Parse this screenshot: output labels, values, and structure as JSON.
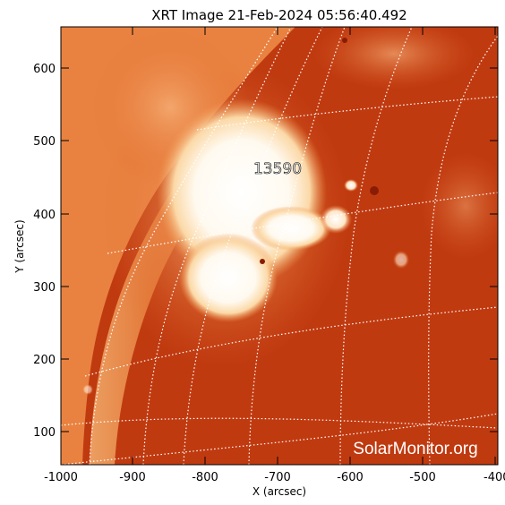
{
  "title": "XRT Image 21-Feb-2024 05:56:40.492",
  "x_axis": {
    "label": "X (arcsec)",
    "ticks": [
      "-1000",
      "-900",
      "-800",
      "-700",
      "-600",
      "-500",
      "-400"
    ]
  },
  "y_axis": {
    "label": "Y (arcsec)",
    "ticks": [
      "100",
      "200",
      "300",
      "400",
      "500",
      "600"
    ]
  },
  "active_region_label": "13590",
  "watermark": "SolarMonitor.org",
  "colors": {
    "background": "#ffffff",
    "sun_dark": "#b82a08",
    "sun_mid": "#e8722a",
    "sun_bright": "#ffffff",
    "grid": "#ffffff"
  }
}
